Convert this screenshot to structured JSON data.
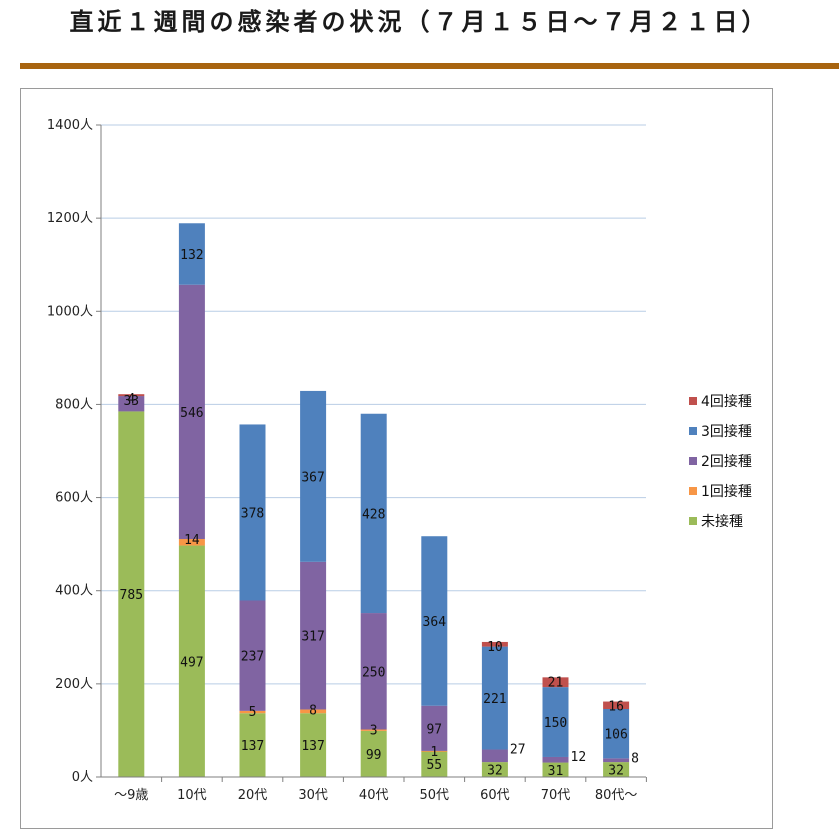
{
  "page": {
    "title": "直近１週間の感染者の状況（７月１５日～７月２１日）",
    "rule_color": "#a8640f"
  },
  "chart_data": {
    "type": "bar",
    "stacked": true,
    "categories": [
      "～9歳",
      "10代",
      "20代",
      "30代",
      "40代",
      "50代",
      "60代",
      "70代",
      "80代～"
    ],
    "ylim": [
      0,
      1400
    ],
    "yticks": [
      0,
      200,
      400,
      600,
      800,
      1000,
      1200,
      1400
    ],
    "ytick_labels": [
      "0人",
      "200人",
      "400人",
      "600人",
      "800人",
      "1000人",
      "1200人",
      "1400人"
    ],
    "grid": true,
    "legend_position": "right",
    "series": [
      {
        "name": "未接種",
        "color": "#9bbb59",
        "values": [
          785,
          497,
          137,
          137,
          99,
          55,
          32,
          31,
          32
        ]
      },
      {
        "name": "1回接種",
        "color": "#f79646",
        "values": [
          0,
          14,
          5,
          8,
          3,
          1,
          0,
          0,
          0
        ]
      },
      {
        "name": "2回接種",
        "color": "#8064a2",
        "values": [
          33,
          546,
          237,
          317,
          250,
          97,
          27,
          12,
          8
        ]
      },
      {
        "name": "3回接種",
        "color": "#4f81bd",
        "values": [
          0,
          132,
          378,
          367,
          428,
          364,
          221,
          150,
          106
        ]
      },
      {
        "name": "4回接種",
        "color": "#c0504d",
        "values": [
          4,
          0,
          0,
          0,
          0,
          0,
          10,
          21,
          16
        ]
      }
    ],
    "data_labels": [
      {
        "series": "4回接種",
        "category": "～9歳",
        "text": "4"
      },
      {
        "series": "2回接種",
        "category": "～9歳",
        "text": "33"
      },
      {
        "series": "未接種",
        "category": "～9歳",
        "text": "785"
      },
      {
        "series": "3回接種",
        "category": "10代",
        "text": "132"
      },
      {
        "series": "2回接種",
        "category": "10代",
        "text": "546"
      },
      {
        "series": "1回接種",
        "category": "10代",
        "text": "14"
      },
      {
        "series": "未接種",
        "category": "10代",
        "text": "497"
      },
      {
        "series": "3回接種",
        "category": "20代",
        "text": "378"
      },
      {
        "series": "2回接種",
        "category": "20代",
        "text": "237"
      },
      {
        "series": "1回接種",
        "category": "20代",
        "text": "5"
      },
      {
        "series": "未接種",
        "category": "20代",
        "text": "137"
      },
      {
        "series": "3回接種",
        "category": "30代",
        "text": "367"
      },
      {
        "series": "2回接種",
        "category": "30代",
        "text": "317"
      },
      {
        "series": "1回接種",
        "category": "30代",
        "text": "8"
      },
      {
        "series": "未接種",
        "category": "30代",
        "text": "137"
      },
      {
        "series": "3回接種",
        "category": "40代",
        "text": "428"
      },
      {
        "series": "2回接種",
        "category": "40代",
        "text": "250"
      },
      {
        "series": "1回接種",
        "category": "40代",
        "text": "3"
      },
      {
        "series": "未接種",
        "category": "40代",
        "text": "99"
      },
      {
        "series": "3回接種",
        "category": "50代",
        "text": "364"
      },
      {
        "series": "2回接種",
        "category": "50代",
        "text": "97"
      },
      {
        "series": "1回接種",
        "category": "50代",
        "text": "1"
      },
      {
        "series": "未接種",
        "category": "50代",
        "text": "55"
      },
      {
        "series": "4回接種",
        "category": "60代",
        "text": "10"
      },
      {
        "series": "3回接種",
        "category": "60代",
        "text": "221"
      },
      {
        "series": "2回接種",
        "category": "60代",
        "text": "27"
      },
      {
        "series": "未接種",
        "category": "60代",
        "text": "32"
      },
      {
        "series": "4回接種",
        "category": "70代",
        "text": "21"
      },
      {
        "series": "3回接種",
        "category": "70代",
        "text": "150"
      },
      {
        "series": "2回接種",
        "category": "70代",
        "text": "12"
      },
      {
        "series": "未接種",
        "category": "70代",
        "text": "31"
      },
      {
        "series": "4回接種",
        "category": "80代～",
        "text": "16"
      },
      {
        "series": "3回接種",
        "category": "80代～",
        "text": "106"
      },
      {
        "series": "2回接種",
        "category": "80代～",
        "text": "8"
      },
      {
        "series": "未接種",
        "category": "80代～",
        "text": "32"
      }
    ]
  }
}
